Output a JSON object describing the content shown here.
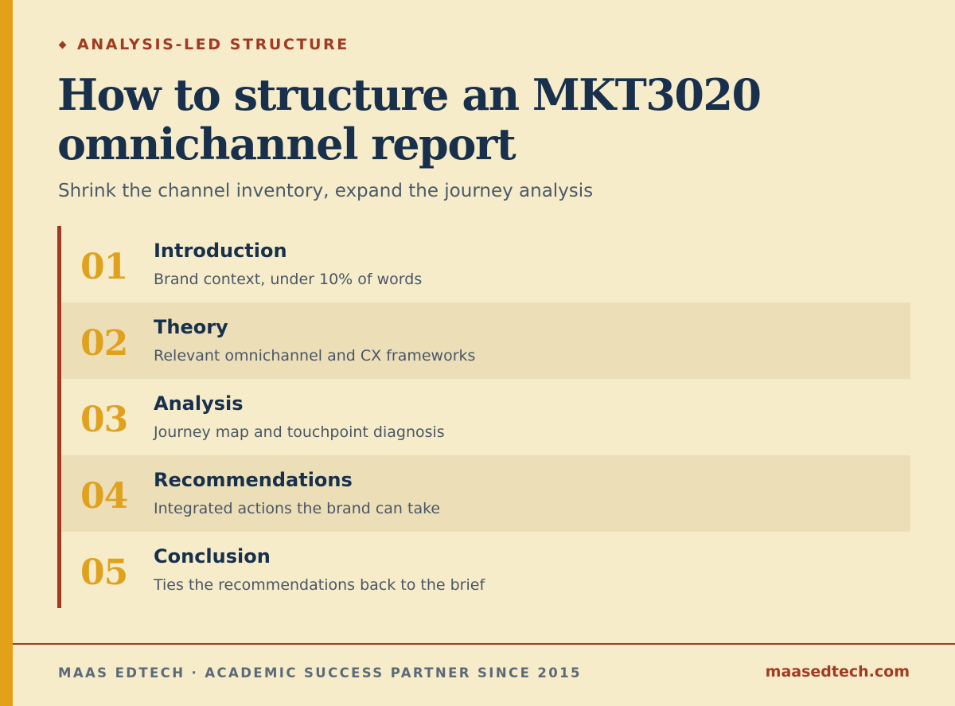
{
  "eyebrow": "ANALYSIS-LED STRUCTURE",
  "title_line1": "How to structure an MKT3020",
  "title_line2": "omnichannel report",
  "subtitle": "Shrink the channel inventory, expand the journey analysis",
  "steps": [
    {
      "number": "01",
      "heading": "Introduction",
      "description": "Brand context, under 10% of words"
    },
    {
      "number": "02",
      "heading": "Theory",
      "description": "Relevant omnichannel and CX frameworks"
    },
    {
      "number": "03",
      "heading": "Analysis",
      "description": "Journey map and touchpoint diagnosis"
    },
    {
      "number": "04",
      "heading": "Recommendations",
      "description": "Integrated actions the brand can take"
    },
    {
      "number": "05",
      "heading": "Conclusion",
      "description": "Ties the recommendations back to the brief"
    }
  ],
  "footer": {
    "left": "MAAS EDTECH · ACADEMIC SUCCESS PARTNER SINCE 2015",
    "right": "maasedtech.com"
  },
  "colors": {
    "background": "#f6ecca",
    "accent_gold": "#e3a11a",
    "accent_red": "#a23a22",
    "navy": "#18304b"
  }
}
